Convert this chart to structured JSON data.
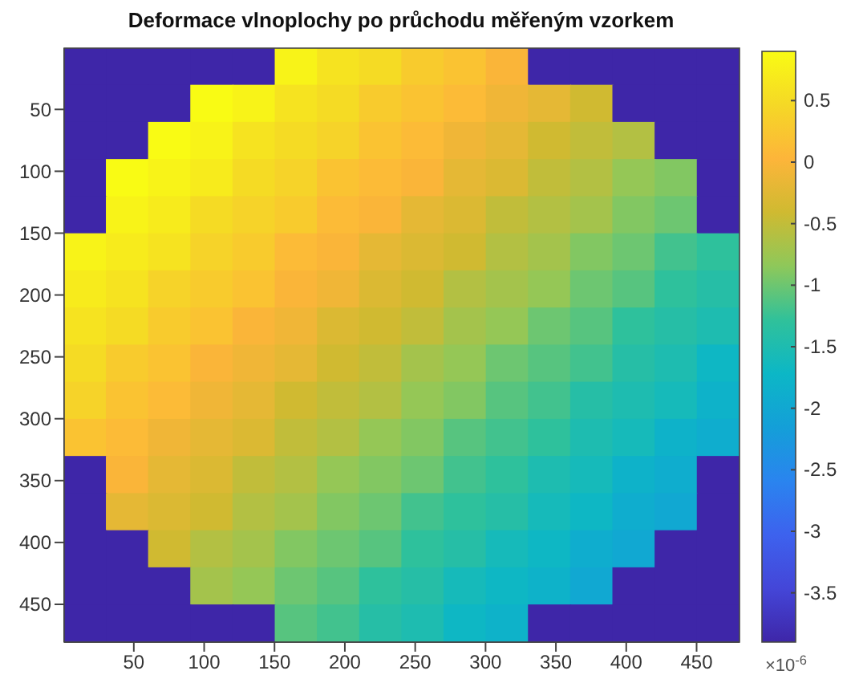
{
  "chart_data": {
    "type": "heatmap",
    "title": "Deformace vlnoplochy po průchodu měřeným vzorkem",
    "clabel": "×10$^{-6}$",
    "xlim": [
      0.5,
      480.5
    ],
    "ylim": [
      480.5,
      0.5
    ],
    "xticks": [
      50,
      100,
      150,
      200,
      250,
      300,
      350,
      400,
      450
    ],
    "yticks": [
      50,
      100,
      150,
      200,
      250,
      300,
      350,
      400,
      450
    ],
    "clim": [
      -3.9,
      0.9
    ],
    "cticks": [
      -3.5,
      -3,
      -2.5,
      -2,
      -1.5,
      -1,
      -0.5,
      0,
      0.5
    ],
    "cells": [
      [
        -3.9,
        -3.9,
        -3.9,
        -3.9,
        -3.9,
        0.8,
        0.6,
        0.5,
        0.3,
        0.2,
        0.0,
        -3.9,
        -3.9,
        -3.9,
        -3.9,
        -3.9
      ],
      [
        -3.9,
        -3.9,
        -3.9,
        0.9,
        0.8,
        0.6,
        0.5,
        0.3,
        0.2,
        0.1,
        -0.1,
        -0.2,
        -0.4,
        -3.9,
        -3.9,
        -3.9
      ],
      [
        -3.9,
        -3.9,
        0.9,
        0.8,
        0.6,
        0.5,
        0.4,
        0.2,
        0.1,
        -0.1,
        -0.2,
        -0.4,
        -0.5,
        -0.6,
        -3.9,
        -3.9
      ],
      [
        -3.9,
        0.9,
        0.8,
        0.7,
        0.5,
        0.4,
        0.2,
        0.1,
        0.0,
        -0.2,
        -0.3,
        -0.5,
        -0.6,
        -0.8,
        -0.9,
        -3.9
      ],
      [
        -3.9,
        0.8,
        0.7,
        0.5,
        0.4,
        0.3,
        0.1,
        0.0,
        -0.2,
        -0.3,
        -0.5,
        -0.6,
        -0.7,
        -0.9,
        -1.0,
        -3.9
      ],
      [
        0.8,
        0.7,
        0.6,
        0.4,
        0.3,
        0.1,
        0.0,
        -0.2,
        -0.3,
        -0.4,
        -0.6,
        -0.7,
        -0.9,
        -1.0,
        -1.2,
        -1.3
      ],
      [
        0.7,
        0.6,
        0.4,
        0.3,
        0.2,
        0.0,
        -0.1,
        -0.3,
        -0.4,
        -0.6,
        -0.7,
        -0.8,
        -1.0,
        -1.1,
        -1.3,
        -1.4
      ],
      [
        0.6,
        0.5,
        0.3,
        0.2,
        0.0,
        -0.1,
        -0.3,
        -0.4,
        -0.5,
        -0.7,
        -0.8,
        -1.0,
        -1.1,
        -1.3,
        -1.4,
        -1.5
      ],
      [
        0.5,
        0.3,
        0.2,
        0.0,
        -0.1,
        -0.2,
        -0.4,
        -0.5,
        -0.7,
        -0.8,
        -1.0,
        -1.1,
        -1.2,
        -1.4,
        -1.5,
        -1.7
      ],
      [
        0.4,
        0.2,
        0.1,
        -0.1,
        -0.2,
        -0.4,
        -0.5,
        -0.6,
        -0.8,
        -0.9,
        -1.1,
        -1.2,
        -1.4,
        -1.5,
        -1.6,
        -1.8
      ],
      [
        0.2,
        0.1,
        -0.1,
        -0.2,
        -0.3,
        -0.5,
        -0.6,
        -0.8,
        -0.9,
        -1.1,
        -1.2,
        -1.3,
        -1.5,
        -1.6,
        -1.8,
        -1.9
      ],
      [
        -3.9,
        0.0,
        -0.2,
        -0.3,
        -0.5,
        -0.6,
        -0.8,
        -0.9,
        -1.0,
        -1.2,
        -1.3,
        -1.5,
        -1.6,
        -1.8,
        -1.9,
        -3.9
      ],
      [
        -3.9,
        -0.2,
        -0.3,
        -0.4,
        -0.6,
        -0.7,
        -0.9,
        -1.0,
        -1.2,
        -1.3,
        -1.4,
        -1.6,
        -1.7,
        -1.9,
        -2.0,
        -3.9
      ],
      [
        -3.9,
        -3.9,
        -0.4,
        -0.6,
        -0.7,
        -0.9,
        -1.0,
        -1.1,
        -1.3,
        -1.4,
        -1.6,
        -1.7,
        -1.9,
        -2.0,
        -3.9,
        -3.9
      ],
      [
        -3.9,
        -3.9,
        -3.9,
        -0.7,
        -0.8,
        -1.0,
        -1.1,
        -1.3,
        -1.4,
        -1.6,
        -1.7,
        -1.8,
        -2.0,
        -3.9,
        -3.9,
        -3.9
      ],
      [
        -3.9,
        -3.9,
        -3.9,
        -3.9,
        -3.9,
        -1.1,
        -1.2,
        -1.4,
        -1.5,
        -1.7,
        -1.8,
        -3.9,
        -3.9,
        -3.9,
        -3.9,
        -3.9
      ]
    ]
  }
}
